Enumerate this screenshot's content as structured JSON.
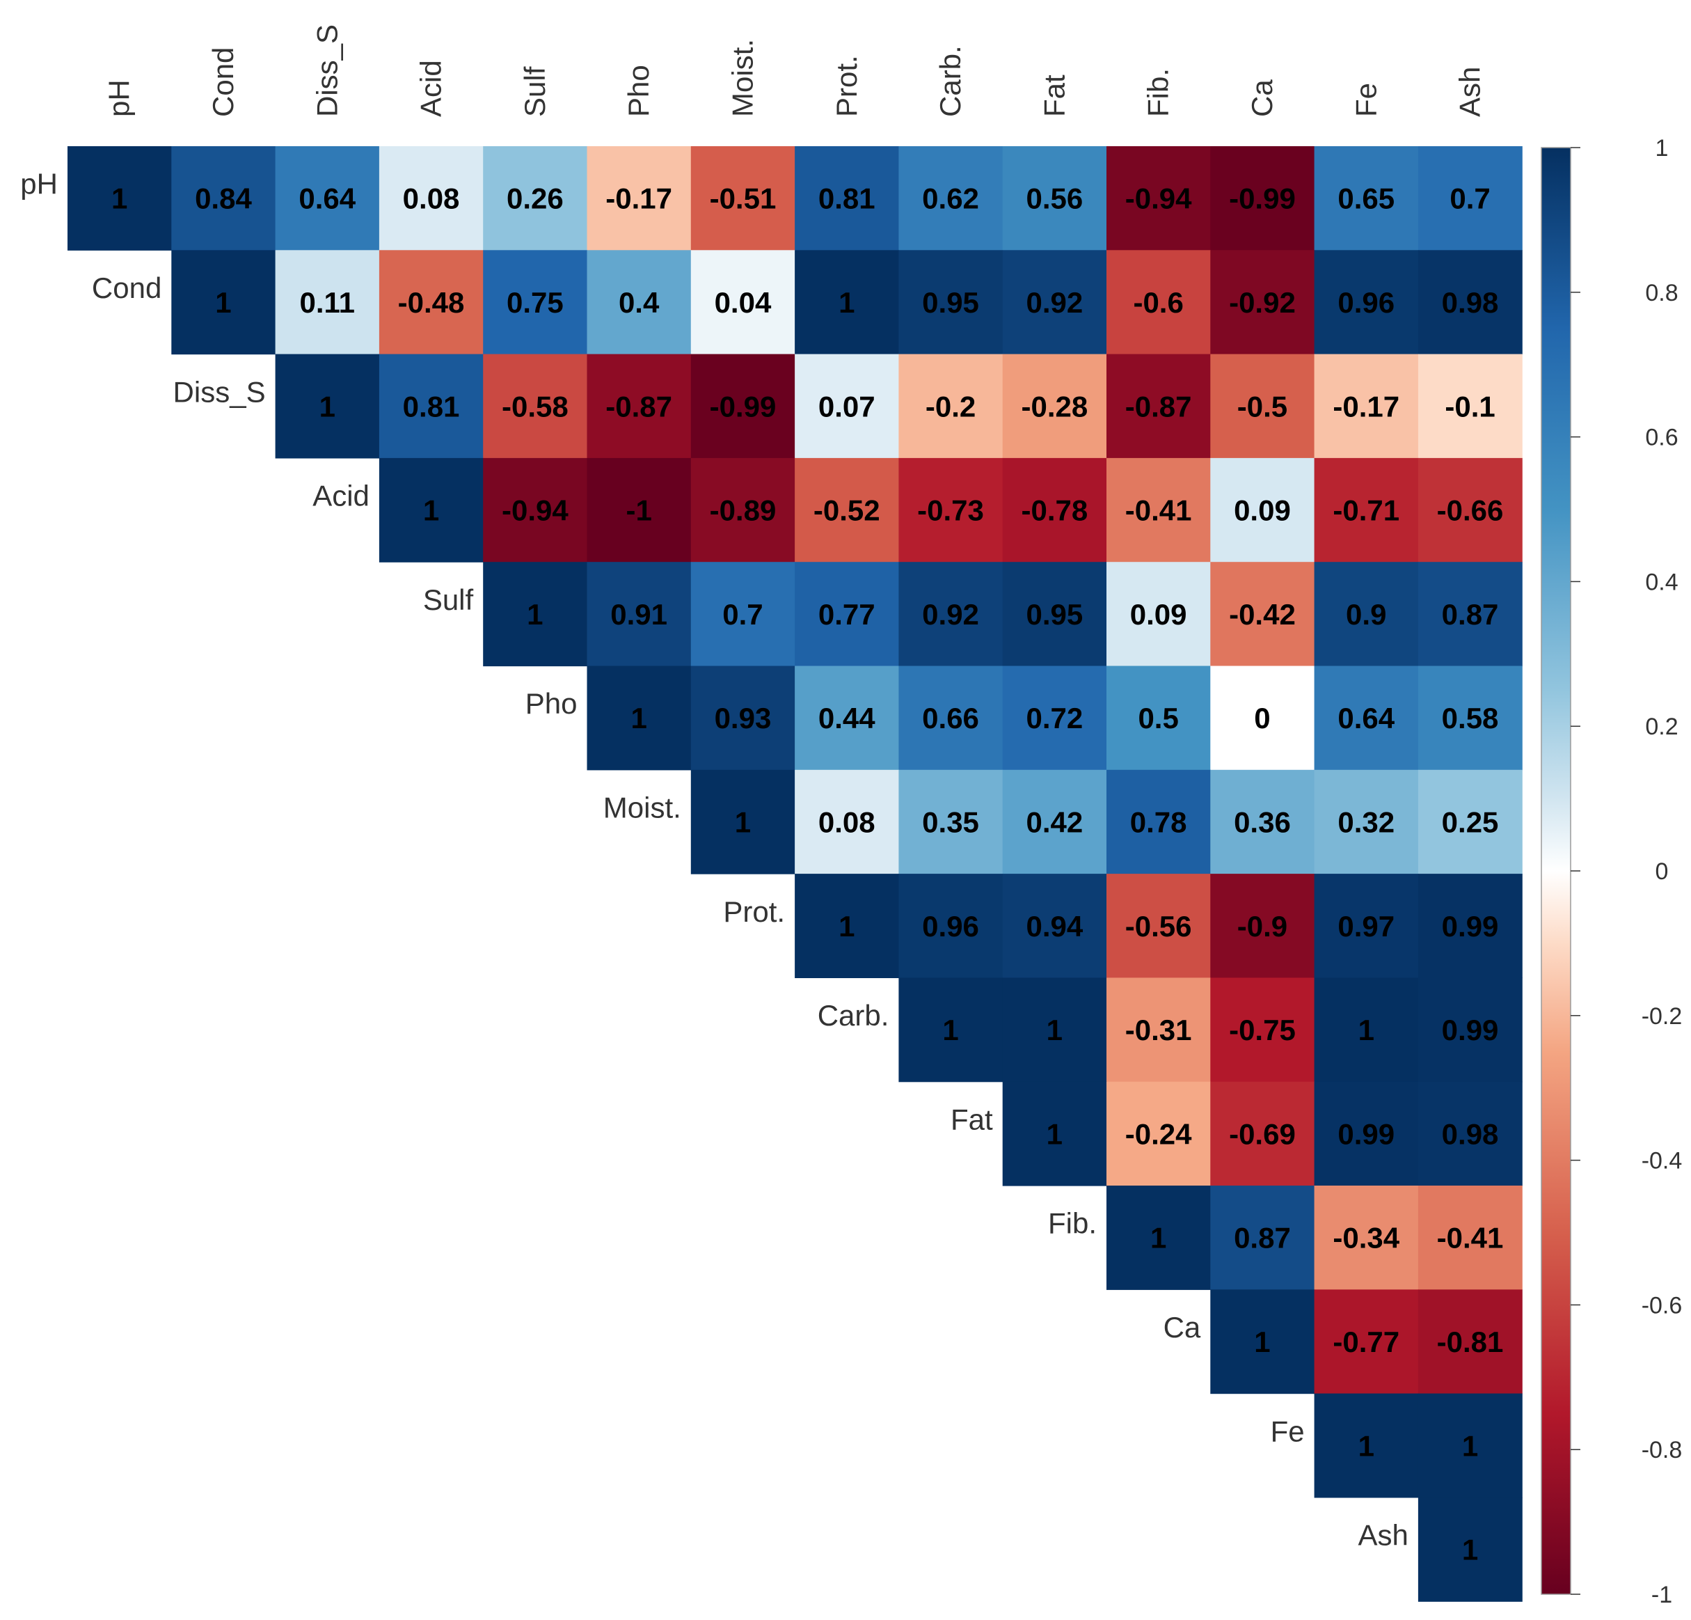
{
  "chart_data": {
    "type": "heatmap",
    "subtype": "upper-triangle correlation matrix",
    "variables": [
      "pH",
      "Cond",
      "Diss_S",
      "Acid",
      "Sulf",
      "Pho",
      "Moist.",
      "Prot.",
      "Carb.",
      "Fat",
      "Fib.",
      "Ca",
      "Fe",
      "Ash"
    ],
    "matrix": [
      [
        "1",
        "0.84",
        "0.64",
        "0.08",
        "0.26",
        "-0.17",
        "-0.51",
        "0.81",
        "0.62",
        "0.56",
        "-0.94",
        "-0.99",
        "0.65",
        "0.7"
      ],
      [
        "",
        "1",
        "0.11",
        "-0.48",
        "0.75",
        "0.4",
        "0.04",
        "1",
        "0.95",
        "0.92",
        "-0.6",
        "-0.92",
        "0.96",
        "0.98"
      ],
      [
        "",
        "",
        "1",
        "0.81",
        "-0.58",
        "-0.87",
        "-0.99",
        "0.07",
        "-0.2",
        "-0.28",
        "-0.87",
        "-0.5",
        "-0.17",
        "-0.1"
      ],
      [
        "",
        "",
        "",
        "1",
        "-0.94",
        "-1",
        "-0.89",
        "-0.52",
        "-0.73",
        "-0.78",
        "-0.41",
        "0.09",
        "-0.71",
        "-0.66"
      ],
      [
        "",
        "",
        "",
        "",
        "1",
        "0.91",
        "0.7",
        "0.77",
        "0.92",
        "0.95",
        "0.09",
        "-0.42",
        "0.9",
        "0.87"
      ],
      [
        "",
        "",
        "",
        "",
        "",
        "1",
        "0.93",
        "0.44",
        "0.66",
        "0.72",
        "0.5",
        "0",
        "0.64",
        "0.58"
      ],
      [
        "",
        "",
        "",
        "",
        "",
        "",
        "1",
        "0.08",
        "0.35",
        "0.42",
        "0.78",
        "0.36",
        "0.32",
        "0.25"
      ],
      [
        "",
        "",
        "",
        "",
        "",
        "",
        "",
        "1",
        "0.96",
        "0.94",
        "-0.56",
        "-0.9",
        "0.97",
        "0.99"
      ],
      [
        "",
        "",
        "",
        "",
        "",
        "",
        "",
        "",
        "1",
        "1",
        "-0.31",
        "-0.75",
        "1",
        "0.99"
      ],
      [
        "",
        "",
        "",
        "",
        "",
        "",
        "",
        "",
        "",
        "1",
        "-0.24",
        "-0.69",
        "0.99",
        "0.98"
      ],
      [
        "",
        "",
        "",
        "",
        "",
        "",
        "",
        "",
        "",
        "",
        "1",
        "0.87",
        "-0.34",
        "-0.41"
      ],
      [
        "",
        "",
        "",
        "",
        "",
        "",
        "",
        "",
        "",
        "",
        "",
        "1",
        "-0.77",
        "-0.81"
      ],
      [
        "",
        "",
        "",
        "",
        "",
        "",
        "",
        "",
        "",
        "",
        "",
        "",
        "1",
        "1"
      ],
      [
        "",
        "",
        "",
        "",
        "",
        "",
        "",
        "",
        "",
        "",
        "",
        "",
        "",
        "1"
      ]
    ],
    "color_scale": {
      "range": [
        -1,
        1
      ],
      "stops": [
        {
          "v": -1,
          "color": "#67001f"
        },
        {
          "v": -0.75,
          "color": "#b2182b"
        },
        {
          "v": -0.5,
          "color": "#d6604d"
        },
        {
          "v": -0.25,
          "color": "#f4a582"
        },
        {
          "v": -0.1,
          "color": "#fddbc7"
        },
        {
          "v": 0,
          "color": "#ffffff"
        },
        {
          "v": 0.1,
          "color": "#d1e5f0"
        },
        {
          "v": 0.25,
          "color": "#92c5de"
        },
        {
          "v": 0.5,
          "color": "#4393c3"
        },
        {
          "v": 0.75,
          "color": "#2166ac"
        },
        {
          "v": 1,
          "color": "#053061"
        }
      ],
      "tick_labels": [
        "1",
        "0.8",
        "0.6",
        "0.4",
        "0.2",
        "0",
        "-0.2",
        "-0.4",
        "-0.6",
        "-0.8",
        "-1"
      ]
    },
    "legend_position": "right",
    "title": "",
    "xlabel": "",
    "ylabel": ""
  }
}
